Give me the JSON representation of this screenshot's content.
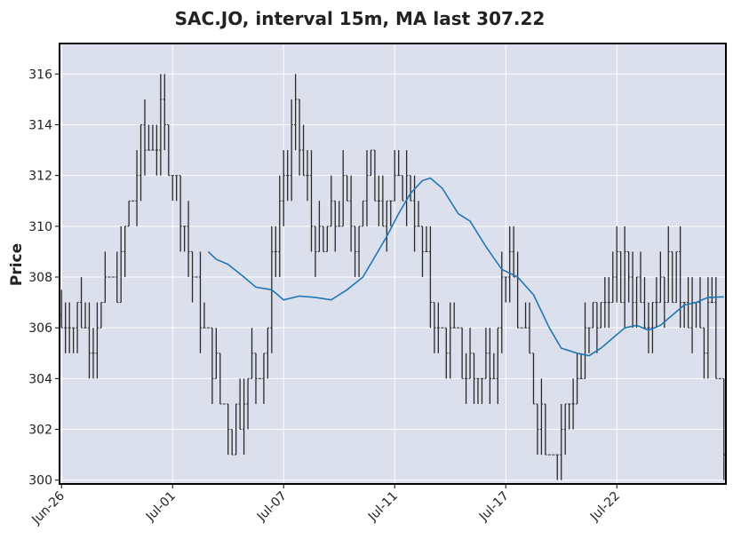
{
  "chart_data": {
    "type": "ohlc",
    "title": "SAC.JO, interval 15m, MA last 307.22",
    "ylabel": "Price",
    "xlabel": "",
    "ylim": [
      299.85,
      317.2
    ],
    "yticks": [
      300,
      302,
      304,
      306,
      308,
      310,
      312,
      314,
      316
    ],
    "xticks": [
      "Jun-26",
      "Jul-01",
      "Jul-07",
      "Jul-11",
      "Jul-17",
      "Jul-22"
    ],
    "xtick_bar_index": [
      0,
      28,
      56,
      84,
      112,
      140
    ],
    "grid": true,
    "bar_count": 168,
    "colors": {
      "background": "#dce0ec",
      "grid": "#ffffff",
      "bars": "#2a2a2a",
      "ma": "#1f77b4",
      "frame": "#000000"
    },
    "price_path": [
      [
        0,
        306.5
      ],
      [
        8,
        306
      ],
      [
        15,
        308.5
      ],
      [
        20,
        313
      ],
      [
        25,
        314
      ],
      [
        29,
        312
      ],
      [
        33,
        308
      ],
      [
        37,
        305
      ],
      [
        43,
        302
      ],
      [
        47,
        304
      ],
      [
        51,
        305
      ],
      [
        55,
        311
      ],
      [
        59,
        314
      ],
      [
        62,
        311
      ],
      [
        66,
        309
      ],
      [
        70,
        311
      ],
      [
        74,
        310
      ],
      [
        78,
        312
      ],
      [
        83,
        311
      ],
      [
        87,
        312
      ],
      [
        91,
        309
      ],
      [
        95,
        306
      ],
      [
        100,
        305
      ],
      [
        105,
        304
      ],
      [
        109,
        305
      ],
      [
        112,
        309
      ],
      [
        116,
        306
      ],
      [
        120,
        303
      ],
      [
        125,
        301
      ],
      [
        128,
        303
      ],
      [
        132,
        305
      ],
      [
        136,
        307
      ],
      [
        140,
        308
      ],
      [
        144,
        308
      ],
      [
        148,
        307
      ],
      [
        152,
        308
      ],
      [
        156,
        308
      ],
      [
        160,
        306
      ],
      [
        164,
        306
      ],
      [
        167,
        302
      ]
    ],
    "ma_path": [
      [
        37,
        309.0
      ],
      [
        39,
        308.7
      ],
      [
        42,
        308.5
      ],
      [
        46,
        308.0
      ],
      [
        49,
        307.6
      ],
      [
        53,
        307.5
      ],
      [
        56,
        307.1
      ],
      [
        60,
        307.25
      ],
      [
        64,
        307.2
      ],
      [
        68,
        307.1
      ],
      [
        72,
        307.5
      ],
      [
        76,
        308.0
      ],
      [
        79,
        308.8
      ],
      [
        82,
        309.6
      ],
      [
        85,
        310.5
      ],
      [
        88,
        311.3
      ],
      [
        91,
        311.8
      ],
      [
        93,
        311.9
      ],
      [
        96,
        311.5
      ],
      [
        100,
        310.5
      ],
      [
        103,
        310.2
      ],
      [
        107,
        309.2
      ],
      [
        111,
        308.3
      ],
      [
        115,
        308.0
      ],
      [
        119,
        307.3
      ],
      [
        123,
        306.0
      ],
      [
        126,
        305.2
      ],
      [
        130,
        305.0
      ],
      [
        133,
        304.9
      ],
      [
        136,
        305.2
      ],
      [
        139,
        305.6
      ],
      [
        142,
        306.0
      ],
      [
        145,
        306.1
      ],
      [
        148,
        305.9
      ],
      [
        151,
        306.1
      ],
      [
        154,
        306.5
      ],
      [
        157,
        306.9
      ],
      [
        160,
        307.0
      ],
      [
        163,
        307.2
      ],
      [
        167,
        307.22
      ]
    ]
  }
}
